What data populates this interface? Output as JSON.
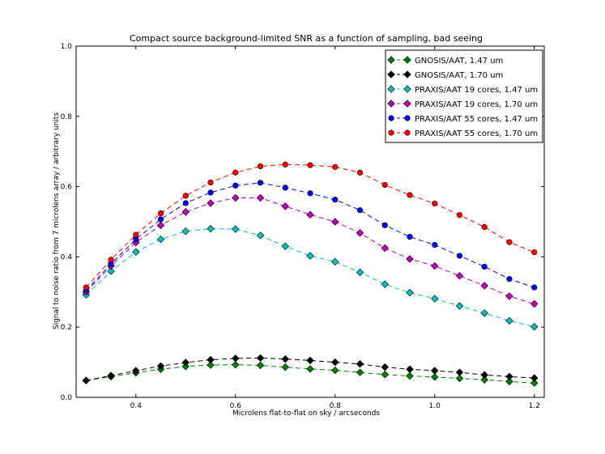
{
  "chart_data": {
    "type": "line",
    "title": "Compact source background-limited SNR as a function of sampling, bad seeing",
    "xlabel": "Microlens flat-to-flat on sky / arcseconds",
    "ylabel": "Signal to noise ratio from 7 microlens array / arbitrary units",
    "xlim": [
      0.28,
      1.22
    ],
    "ylim": [
      0.0,
      1.0
    ],
    "xticks": [
      0.4,
      0.6,
      0.8,
      1.0,
      1.2
    ],
    "xtick_labels": [
      "0.4",
      "0.6",
      "0.8",
      "1.0",
      "1.2"
    ],
    "yticks": [
      0.0,
      0.2,
      0.4,
      0.6,
      0.8,
      1.0
    ],
    "ytick_labels": [
      "0.0",
      "0.2",
      "0.4",
      "0.6",
      "0.8",
      "1.0"
    ],
    "grid": false,
    "legend_position": "top-right",
    "x": [
      0.3,
      0.35,
      0.4,
      0.45,
      0.5,
      0.55,
      0.6,
      0.65,
      0.7,
      0.75,
      0.8,
      0.85,
      0.9,
      0.95,
      1.0,
      1.05,
      1.1,
      1.15,
      1.2
    ],
    "series": [
      {
        "name": "GNOSIS/AAT, 1.47 um",
        "color": "#008000",
        "marker": "diamond",
        "values": [
          0.048,
          0.059,
          0.07,
          0.08,
          0.088,
          0.092,
          0.093,
          0.091,
          0.086,
          0.081,
          0.077,
          0.071,
          0.065,
          0.061,
          0.058,
          0.054,
          0.05,
          0.045,
          0.041
        ]
      },
      {
        "name": "GNOSIS/AAT, 1.70 um",
        "color": "#000000",
        "marker": "diamond",
        "values": [
          0.048,
          0.062,
          0.076,
          0.089,
          0.099,
          0.107,
          0.111,
          0.112,
          0.109,
          0.105,
          0.1,
          0.095,
          0.086,
          0.08,
          0.076,
          0.071,
          0.064,
          0.059,
          0.055
        ]
      },
      {
        "name": "PRAXIS/AAT 19 cores, 1.47 um",
        "color": "#00bfbf",
        "marker": "diamond",
        "values": [
          0.292,
          0.359,
          0.414,
          0.45,
          0.473,
          0.48,
          0.479,
          0.461,
          0.43,
          0.403,
          0.386,
          0.356,
          0.322,
          0.298,
          0.281,
          0.26,
          0.24,
          0.218,
          0.201
        ]
      },
      {
        "name": "PRAXIS/AAT 19 cores, 1.70 um",
        "color": "#bf00bf",
        "marker": "diamond",
        "values": [
          0.3,
          0.374,
          0.441,
          0.49,
          0.528,
          0.553,
          0.568,
          0.568,
          0.544,
          0.52,
          0.5,
          0.468,
          0.425,
          0.394,
          0.374,
          0.346,
          0.318,
          0.288,
          0.266
        ]
      },
      {
        "name": "PRAXIS/AAT 55 cores, 1.47 um",
        "color": "#0000ff",
        "marker": "circle",
        "values": [
          0.304,
          0.38,
          0.45,
          0.507,
          0.553,
          0.583,
          0.603,
          0.611,
          0.597,
          0.581,
          0.563,
          0.533,
          0.49,
          0.457,
          0.434,
          0.403,
          0.372,
          0.337,
          0.313
        ]
      },
      {
        "name": "PRAXIS/AAT 55 cores, 1.70 um",
        "color": "#ff0000",
        "marker": "circle",
        "values": [
          0.313,
          0.392,
          0.463,
          0.524,
          0.574,
          0.612,
          0.64,
          0.658,
          0.663,
          0.661,
          0.656,
          0.64,
          0.605,
          0.576,
          0.552,
          0.519,
          0.485,
          0.442,
          0.413
        ]
      }
    ]
  }
}
